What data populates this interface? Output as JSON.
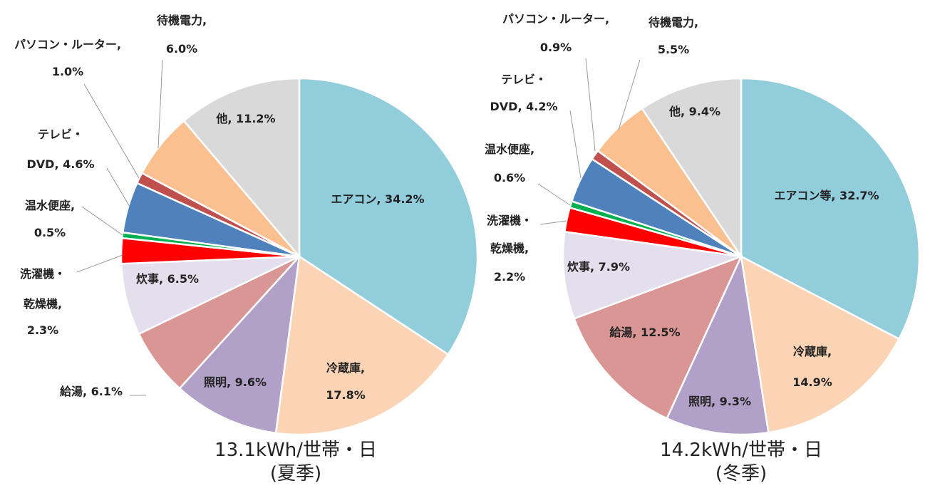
{
  "chart_data": [
    {
      "type": "pie",
      "title": "13.1kWh/世帯・日",
      "subtitle": "(夏季)",
      "start": "top, clockwise",
      "slices": [
        {
          "name": "エアコン",
          "value": 34.2,
          "color": "#92CDDC",
          "label_lines": [
            "エアコン, 34.2%"
          ]
        },
        {
          "name": "冷蔵庫",
          "value": 17.8,
          "color": "#FAD4B4",
          "label_lines": [
            "冷蔵庫,",
            "17.8%"
          ]
        },
        {
          "name": "照明",
          "value": 9.6,
          "color": "#B1A0C7",
          "label_lines": [
            "照明, 9.6%"
          ]
        },
        {
          "name": "給湯",
          "value": 6.1,
          "color": "#DA9694",
          "label_lines": [
            "給湯, 6.1%"
          ]
        },
        {
          "name": "炊事",
          "value": 6.5,
          "color": "#E4DFEC",
          "label_lines": [
            "炊事, 6.5%"
          ]
        },
        {
          "name": "洗濯機・乾燥機",
          "value": 2.3,
          "color": "#FF0000",
          "label_lines": [
            "洗濯機・",
            "乾燥機,",
            "2.3%"
          ]
        },
        {
          "name": "温水便座",
          "value": 0.5,
          "color": "#00B050",
          "label_lines": [
            "温水便座,",
            "0.5%"
          ]
        },
        {
          "name": "テレビ・DVD",
          "value": 4.6,
          "color": "#4F81BD",
          "label_lines": [
            "テレビ・",
            "DVD, 4.6%"
          ]
        },
        {
          "name": "パソコン・ルーター",
          "value": 1.0,
          "color": "#C0504D",
          "label_lines": [
            "パソコン・ルーター,",
            "1.0%"
          ]
        },
        {
          "name": "待機電力",
          "value": 6.0,
          "color": "#FAC090",
          "label_lines": [
            "待機電力,",
            "6.0%"
          ]
        },
        {
          "name": "他",
          "value": 11.2,
          "color": "#D9D9D9",
          "label_lines": [
            "他, 11.2%"
          ]
        }
      ]
    },
    {
      "type": "pie",
      "title": "14.2kWh/世帯・日",
      "subtitle": "(冬季)",
      "start": "top, clockwise",
      "slices": [
        {
          "name": "エアコン等",
          "value": 32.7,
          "color": "#92CDDC",
          "label_lines": [
            "エアコン等, 32.7%"
          ]
        },
        {
          "name": "冷蔵庫",
          "value": 14.9,
          "color": "#FAD4B4",
          "label_lines": [
            "冷蔵庫,",
            "14.9%"
          ]
        },
        {
          "name": "照明",
          "value": 9.3,
          "color": "#B1A0C7",
          "label_lines": [
            "照明, 9.3%"
          ]
        },
        {
          "name": "給湯",
          "value": 12.5,
          "color": "#DA9694",
          "label_lines": [
            "給湯, 12.5%"
          ]
        },
        {
          "name": "炊事",
          "value": 7.9,
          "color": "#E4DFEC",
          "label_lines": [
            "炊事, 7.9%"
          ]
        },
        {
          "name": "洗濯機・乾燥機",
          "value": 2.2,
          "color": "#FF0000",
          "label_lines": [
            "洗濯機・",
            "乾燥機,",
            "2.2%"
          ]
        },
        {
          "name": "温水便座",
          "value": 0.6,
          "color": "#00B050",
          "label_lines": [
            "温水便座,",
            "0.6%"
          ]
        },
        {
          "name": "テレビ・DVD",
          "value": 4.2,
          "color": "#4F81BD",
          "label_lines": [
            "テレビ・",
            "DVD, 4.2%"
          ]
        },
        {
          "name": "パソコン・ルーター",
          "value": 0.9,
          "color": "#C0504D",
          "label_lines": [
            "パソコン・ルーター,",
            "0.9%"
          ]
        },
        {
          "name": "待機電力",
          "value": 5.5,
          "color": "#FAC090",
          "label_lines": [
            "待機電力,",
            "5.5%"
          ]
        },
        {
          "name": "他",
          "value": 9.4,
          "color": "#D9D9D9",
          "label_lines": [
            "他, 9.4%"
          ]
        }
      ]
    }
  ]
}
